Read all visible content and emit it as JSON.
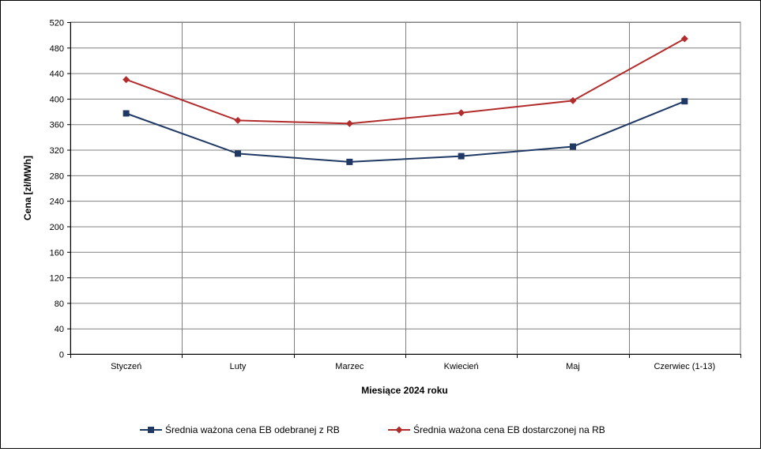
{
  "chart_data": {
    "type": "line",
    "xlabel": "Miesiące 2024  roku",
    "ylabel": "Cena [zł/MWh]",
    "categories": [
      "Styczeń",
      "Luty",
      "Marzec",
      "Kwiecień",
      "Maj",
      "Czerwiec (1-13)"
    ],
    "ylim": [
      0,
      520
    ],
    "yticks": [
      0,
      40,
      80,
      120,
      160,
      200,
      240,
      280,
      320,
      360,
      400,
      440,
      480,
      520
    ],
    "grid": true,
    "legend_position": "bottom",
    "series": [
      {
        "name": "Średnia ważona cena EB odebranej z RB",
        "values": [
          377,
          314,
          301,
          310,
          325,
          396
        ],
        "color": "#1f3864",
        "marker": "square"
      },
      {
        "name": "Średnia ważona cena EB dostarczonej na RB",
        "values": [
          430,
          366,
          361,
          378,
          397,
          494
        ],
        "color": "#b22c2c",
        "marker": "diamond"
      }
    ]
  }
}
